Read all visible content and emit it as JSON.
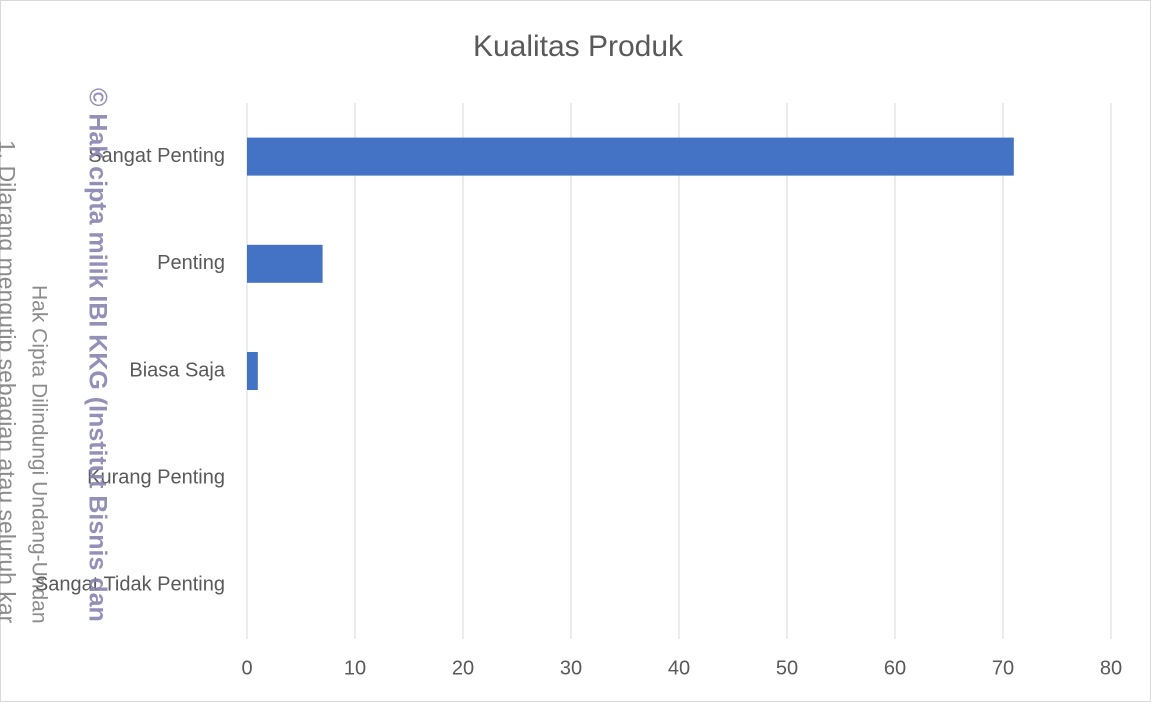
{
  "chart_data": {
    "type": "hbar",
    "title": "Kualitas Produk",
    "categories": [
      "Sangat Penting",
      "Penting",
      "Biasa Saja",
      "Kurang Penting",
      "Sangat Tidak Penting"
    ],
    "values": [
      71,
      7,
      1,
      0,
      0
    ],
    "color": "#4472c4",
    "xlim": [
      0,
      80
    ],
    "xticks": [
      0,
      10,
      20,
      30,
      40,
      50,
      60,
      70,
      80
    ],
    "grid": true,
    "annotations": [
      "© Hak cipta milik IBI KKG (Institut Bisnis dan",
      "Hak Cipta Dilindungi Undang-Undan",
      "1. Dilarang mengutip sebagian atau seluruh kar"
    ]
  }
}
